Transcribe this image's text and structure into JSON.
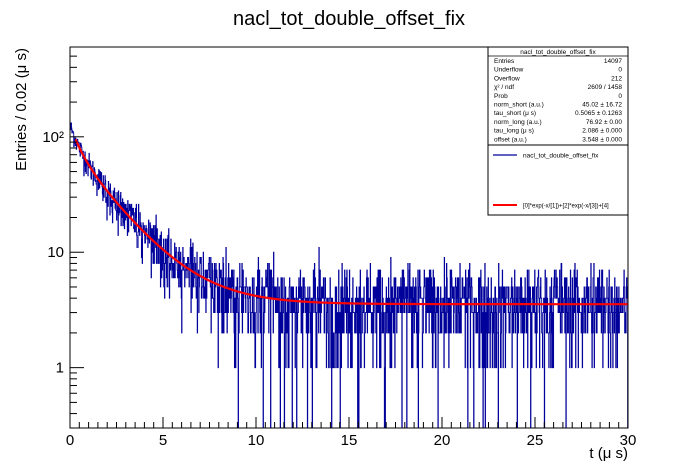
{
  "chart_data": {
    "type": "histogram",
    "title": "nacl_tot_double_offset_fix",
    "xlabel": "t (μ s)",
    "ylabel": "Entries / 0.02 (μ s)",
    "xlim": [
      0,
      30
    ],
    "ylim": [
      0.3,
      600
    ],
    "y_scale": "log",
    "bin_width": 0.02,
    "x_ticks": [
      "0",
      "5",
      "10",
      "15",
      "20",
      "25",
      "30"
    ],
    "x_tick_values": [
      0,
      5,
      10,
      15,
      20,
      25,
      30
    ],
    "y_ticks": [
      "1",
      "10",
      "10²"
    ],
    "y_tick_values": [
      1,
      10,
      100
    ],
    "series": [
      {
        "name": "nacl_tot_double_offset_fix",
        "kind": "histogram",
        "color": "#00009b"
      },
      {
        "name": "[0]*exp(-x/[1])+[2]*exp(-x/[3])+[4]",
        "kind": "function",
        "color": "#ff0000"
      }
    ],
    "fit": {
      "norm_short": 45.02,
      "tau_short": 0.5065,
      "norm_long": 76.92,
      "tau_long": 2.086,
      "offset": 3.548
    },
    "stats_box": {
      "title": "nacl_tot_double_offset_fix",
      "rows": [
        {
          "label": "Entries",
          "value": "14097"
        },
        {
          "label": "Underflow",
          "value": "0"
        },
        {
          "label": "Overflow",
          "value": "212"
        },
        {
          "label": "χ² / ndf",
          "value": "2609 / 1458"
        },
        {
          "label": "Prob",
          "value": "0"
        },
        {
          "label": "norm_short (a.u.)",
          "value": "45.02 ± 16.72"
        },
        {
          "label": "tau_short (μ s)",
          "value": "0.5065 ± 0.1263"
        },
        {
          "label": "norm_long (a.u.)",
          "value": "76.92 ± 0.00"
        },
        {
          "label": "tau_long (μ s)",
          "value": "2.086 ± 0.000"
        },
        {
          "label": "offset (a.u.)",
          "value": "3.548 ± 0.000"
        }
      ]
    },
    "legend": {
      "placement": "top-right",
      "entries": [
        {
          "label": "nacl_tot_double_offset_fix",
          "color": "#00009b"
        },
        {
          "label": "[0]*exp(-x/[1])+[2]*exp(-x/[3])+[4]",
          "color": "#ff0000"
        }
      ]
    },
    "grid": false
  }
}
